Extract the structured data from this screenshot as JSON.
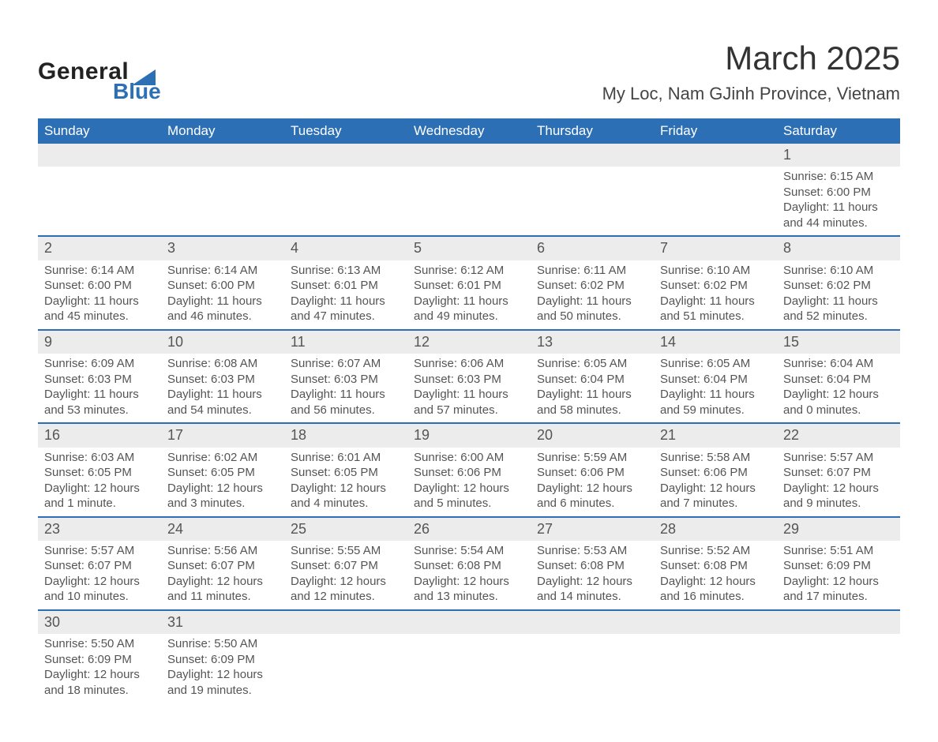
{
  "logo": {
    "text1": "General",
    "text2": "Blue",
    "tri_color": "#2d6fb5"
  },
  "header": {
    "title": "March 2025",
    "location": "My Loc, Nam GJinh Province, Vietnam"
  },
  "colors": {
    "header_bg": "#2d6fb5",
    "header_text": "#ffffff",
    "daynum_bg": "#ececec",
    "row_border": "#2d6fb5",
    "body_text": "#555555",
    "page_bg": "#ffffff"
  },
  "weekdays": [
    "Sunday",
    "Monday",
    "Tuesday",
    "Wednesday",
    "Thursday",
    "Friday",
    "Saturday"
  ],
  "first_weekday_index": 6,
  "days": [
    {
      "n": 1,
      "sunrise": "6:15 AM",
      "sunset": "6:00 PM",
      "daylight": "11 hours and 44 minutes."
    },
    {
      "n": 2,
      "sunrise": "6:14 AM",
      "sunset": "6:00 PM",
      "daylight": "11 hours and 45 minutes."
    },
    {
      "n": 3,
      "sunrise": "6:14 AM",
      "sunset": "6:00 PM",
      "daylight": "11 hours and 46 minutes."
    },
    {
      "n": 4,
      "sunrise": "6:13 AM",
      "sunset": "6:01 PM",
      "daylight": "11 hours and 47 minutes."
    },
    {
      "n": 5,
      "sunrise": "6:12 AM",
      "sunset": "6:01 PM",
      "daylight": "11 hours and 49 minutes."
    },
    {
      "n": 6,
      "sunrise": "6:11 AM",
      "sunset": "6:02 PM",
      "daylight": "11 hours and 50 minutes."
    },
    {
      "n": 7,
      "sunrise": "6:10 AM",
      "sunset": "6:02 PM",
      "daylight": "11 hours and 51 minutes."
    },
    {
      "n": 8,
      "sunrise": "6:10 AM",
      "sunset": "6:02 PM",
      "daylight": "11 hours and 52 minutes."
    },
    {
      "n": 9,
      "sunrise": "6:09 AM",
      "sunset": "6:03 PM",
      "daylight": "11 hours and 53 minutes."
    },
    {
      "n": 10,
      "sunrise": "6:08 AM",
      "sunset": "6:03 PM",
      "daylight": "11 hours and 54 minutes."
    },
    {
      "n": 11,
      "sunrise": "6:07 AM",
      "sunset": "6:03 PM",
      "daylight": "11 hours and 56 minutes."
    },
    {
      "n": 12,
      "sunrise": "6:06 AM",
      "sunset": "6:03 PM",
      "daylight": "11 hours and 57 minutes."
    },
    {
      "n": 13,
      "sunrise": "6:05 AM",
      "sunset": "6:04 PM",
      "daylight": "11 hours and 58 minutes."
    },
    {
      "n": 14,
      "sunrise": "6:05 AM",
      "sunset": "6:04 PM",
      "daylight": "11 hours and 59 minutes."
    },
    {
      "n": 15,
      "sunrise": "6:04 AM",
      "sunset": "6:04 PM",
      "daylight": "12 hours and 0 minutes."
    },
    {
      "n": 16,
      "sunrise": "6:03 AM",
      "sunset": "6:05 PM",
      "daylight": "12 hours and 1 minute."
    },
    {
      "n": 17,
      "sunrise": "6:02 AM",
      "sunset": "6:05 PM",
      "daylight": "12 hours and 3 minutes."
    },
    {
      "n": 18,
      "sunrise": "6:01 AM",
      "sunset": "6:05 PM",
      "daylight": "12 hours and 4 minutes."
    },
    {
      "n": 19,
      "sunrise": "6:00 AM",
      "sunset": "6:06 PM",
      "daylight": "12 hours and 5 minutes."
    },
    {
      "n": 20,
      "sunrise": "5:59 AM",
      "sunset": "6:06 PM",
      "daylight": "12 hours and 6 minutes."
    },
    {
      "n": 21,
      "sunrise": "5:58 AM",
      "sunset": "6:06 PM",
      "daylight": "12 hours and 7 minutes."
    },
    {
      "n": 22,
      "sunrise": "5:57 AM",
      "sunset": "6:07 PM",
      "daylight": "12 hours and 9 minutes."
    },
    {
      "n": 23,
      "sunrise": "5:57 AM",
      "sunset": "6:07 PM",
      "daylight": "12 hours and 10 minutes."
    },
    {
      "n": 24,
      "sunrise": "5:56 AM",
      "sunset": "6:07 PM",
      "daylight": "12 hours and 11 minutes."
    },
    {
      "n": 25,
      "sunrise": "5:55 AM",
      "sunset": "6:07 PM",
      "daylight": "12 hours and 12 minutes."
    },
    {
      "n": 26,
      "sunrise": "5:54 AM",
      "sunset": "6:08 PM",
      "daylight": "12 hours and 13 minutes."
    },
    {
      "n": 27,
      "sunrise": "5:53 AM",
      "sunset": "6:08 PM",
      "daylight": "12 hours and 14 minutes."
    },
    {
      "n": 28,
      "sunrise": "5:52 AM",
      "sunset": "6:08 PM",
      "daylight": "12 hours and 16 minutes."
    },
    {
      "n": 29,
      "sunrise": "5:51 AM",
      "sunset": "6:09 PM",
      "daylight": "12 hours and 17 minutes."
    },
    {
      "n": 30,
      "sunrise": "5:50 AM",
      "sunset": "6:09 PM",
      "daylight": "12 hours and 18 minutes."
    },
    {
      "n": 31,
      "sunrise": "5:50 AM",
      "sunset": "6:09 PM",
      "daylight": "12 hours and 19 minutes."
    }
  ],
  "labels": {
    "sunrise_prefix": "Sunrise: ",
    "sunset_prefix": "Sunset: ",
    "daylight_prefix": "Daylight: "
  }
}
